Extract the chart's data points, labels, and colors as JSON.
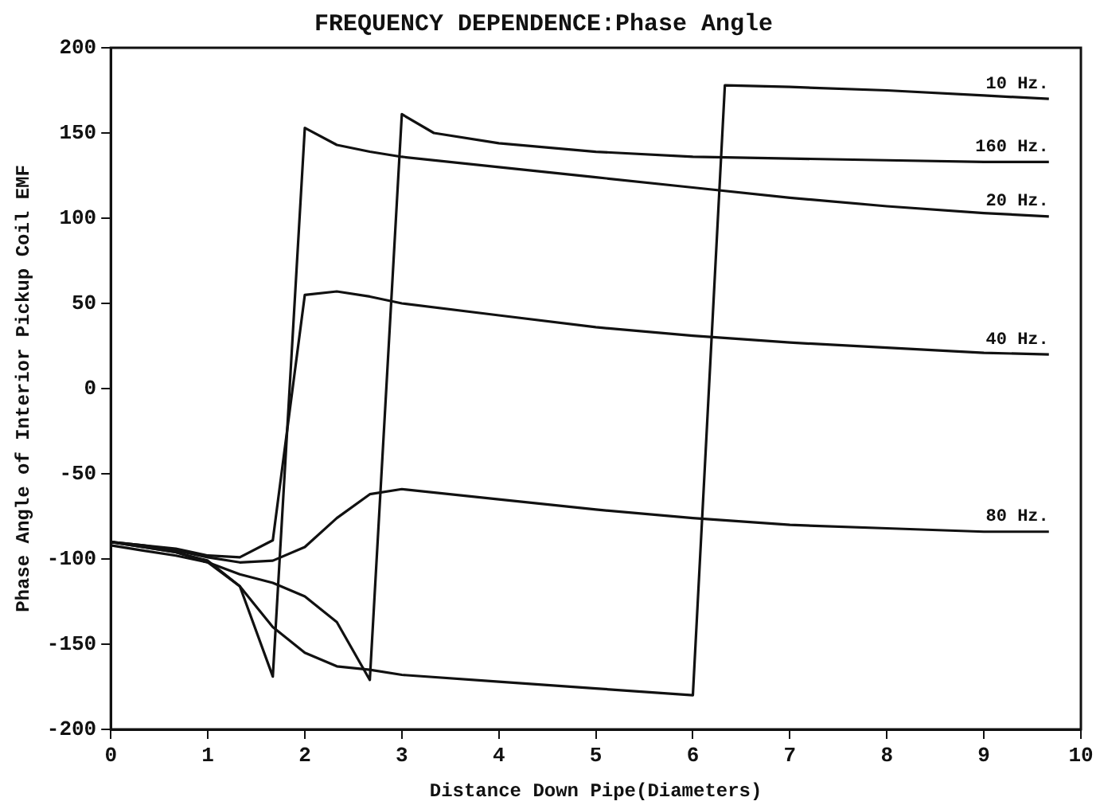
{
  "chart_data": {
    "type": "line",
    "title": "FREQUENCY DEPENDENCE:Phase Angle",
    "xlabel": "Distance Down Pipe(Diameters)",
    "ylabel": "Phase Angle of Interior Pickup Coil EMF",
    "xlim": [
      0,
      10
    ],
    "xticks": [
      0,
      1,
      2,
      3,
      4,
      5,
      6,
      7,
      8,
      9,
      10
    ],
    "ylim": [
      -200,
      200
    ],
    "yticks": [
      -200,
      -150,
      -100,
      -50,
      0,
      50,
      100,
      150,
      200
    ],
    "grid": false,
    "legend": false,
    "marker": "none",
    "line_style": "solid",
    "series": [
      {
        "name": "10 Hz.",
        "color": "#111111",
        "x": [
          0,
          0.33,
          0.67,
          1,
          1.33,
          1.67,
          2,
          2.33,
          2.67,
          3,
          4,
          5,
          6,
          6.33,
          7,
          8,
          9,
          9.67
        ],
        "values": [
          -90,
          -93,
          -96,
          -102,
          -116,
          -140,
          -155,
          -163,
          -165,
          -168,
          -172,
          -176,
          -180,
          178,
          177,
          175,
          172,
          170
        ]
      },
      {
        "name": "160 Hz.",
        "color": "#111111",
        "x": [
          0,
          0.33,
          0.67,
          1,
          1.33,
          1.67,
          2,
          2.33,
          2.67,
          3,
          3.33,
          4,
          5,
          6,
          7,
          8,
          9,
          9.67
        ],
        "values": [
          -92,
          -95,
          -98,
          -102,
          -109,
          -114,
          -122,
          -137,
          -171,
          161,
          150,
          144,
          139,
          136,
          135,
          134,
          133,
          133
        ]
      },
      {
        "name": "20 Hz.",
        "color": "#111111",
        "x": [
          0,
          0.33,
          0.67,
          1,
          1.33,
          1.67,
          2,
          2.33,
          2.67,
          3,
          4,
          5,
          6,
          7,
          8,
          9,
          9.67
        ],
        "values": [
          -90,
          -93,
          -96,
          -101,
          -116,
          -169,
          153,
          143,
          139,
          136,
          130,
          124,
          118,
          112,
          107,
          103,
          101
        ]
      },
      {
        "name": "40 Hz.",
        "color": "#111111",
        "x": [
          0,
          0.33,
          0.67,
          1,
          1.33,
          1.67,
          2,
          2.33,
          2.67,
          3,
          4,
          5,
          6,
          7,
          8,
          9,
          9.67
        ],
        "values": [
          -90,
          -92,
          -94,
          -98,
          -99,
          -89,
          55,
          57,
          54,
          50,
          43,
          36,
          31,
          27,
          24,
          21,
          20
        ]
      },
      {
        "name": "80 Hz.",
        "color": "#111111",
        "x": [
          0,
          0.33,
          0.67,
          1,
          1.33,
          1.67,
          2,
          2.33,
          2.67,
          3,
          4,
          5,
          6,
          7,
          8,
          9,
          9.67
        ],
        "values": [
          -90,
          -92,
          -95,
          -99,
          -102,
          -101,
          -93,
          -76,
          -62,
          -59,
          -65,
          -71,
          -76,
          -80,
          -82,
          -84,
          -84
        ]
      }
    ]
  }
}
